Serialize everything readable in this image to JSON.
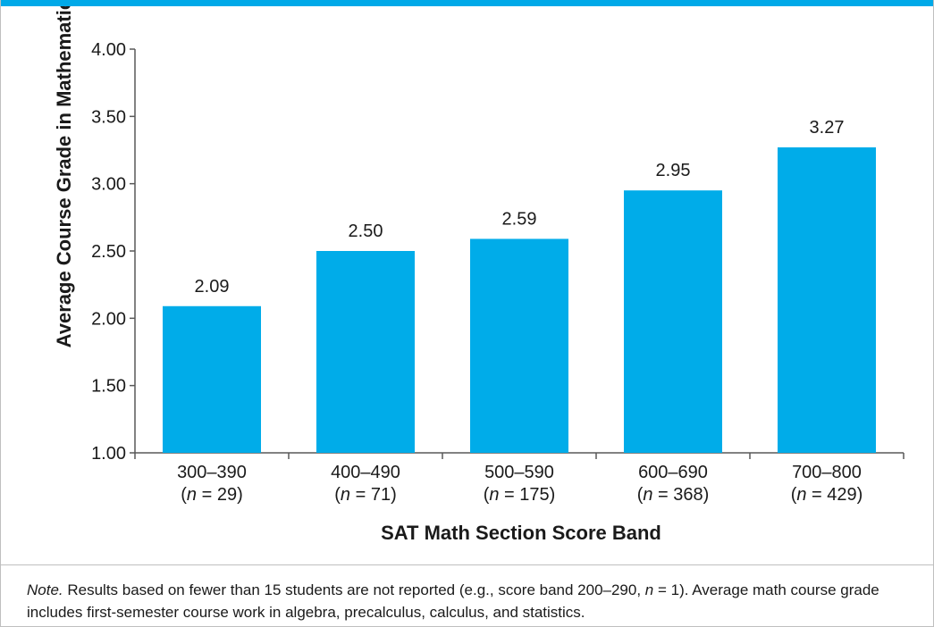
{
  "colors": {
    "bar": "#00ace9",
    "accent_band": "#00a9e8",
    "axis": "#595959"
  },
  "chart_data": {
    "type": "bar",
    "title": "",
    "xlabel": "SAT Math Section Score Band",
    "ylabel": "Average Course Grade in Mathematics",
    "ylim": [
      1.0,
      4.0
    ],
    "yticks": [
      "1.00",
      "1.50",
      "2.00",
      "2.50",
      "3.00",
      "3.50",
      "4.00"
    ],
    "grid": false,
    "categories": [
      "300–390",
      "400–490",
      "500–590",
      "600–690",
      "700–800"
    ],
    "n_values": [
      "29",
      "71",
      "175",
      "368",
      "429"
    ],
    "values": [
      2.09,
      2.5,
      2.59,
      2.95,
      3.27
    ],
    "value_labels": [
      "2.09",
      "2.50",
      "2.59",
      "2.95",
      "3.27"
    ]
  },
  "note": {
    "lead": "Note.",
    "text_1": " Results based on fewer than 15 students are not reported (e.g., score band 200–290, ",
    "n_symbol": "n",
    "text_2": " = 1). Average math course grade includes first-semester course work in algebra, precalculus, calculus, and statistics."
  }
}
